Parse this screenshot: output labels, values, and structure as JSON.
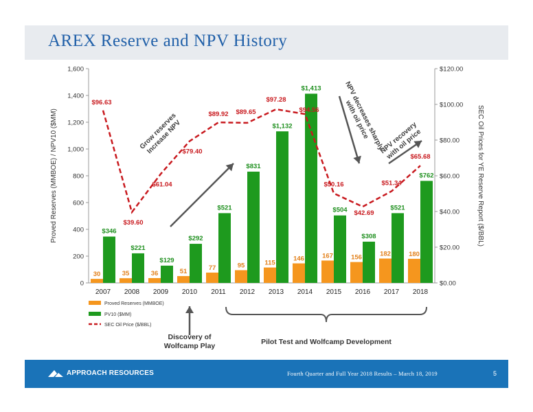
{
  "slide": {
    "title": "AREX Reserve and NPV History",
    "footer_text": "Fourth Quarter and Full Year 2018 Results – March 18, 2019",
    "page_number": "5",
    "logo_text": "APPROACH RESOURCES"
  },
  "chart_data": {
    "type": "bar",
    "categories": [
      "2007",
      "2008",
      "2009",
      "2010",
      "2011",
      "2012",
      "2013",
      "2014",
      "2015",
      "2016",
      "2017",
      "2018"
    ],
    "series": [
      {
        "name": "Proved Reserves (MMBOE)",
        "type": "bar",
        "axis": "left",
        "color": "#f5961e",
        "values": [
          30,
          35,
          36,
          51,
          77,
          95,
          115,
          146,
          167,
          156,
          182,
          180
        ],
        "labels": [
          "30",
          "35",
          "36",
          "51",
          "77",
          "95",
          "115",
          "146",
          "167",
          "156",
          "182",
          "180"
        ]
      },
      {
        "name": "PV10 ($MM)",
        "type": "bar",
        "axis": "left",
        "color": "#1e9a1e",
        "values": [
          346,
          221,
          129,
          292,
          521,
          831,
          1132,
          1413,
          504,
          308,
          521,
          762
        ],
        "labels": [
          "$346",
          "$221",
          "$129",
          "$292",
          "$521",
          "$831",
          "$1,132",
          "$1,413",
          "$504",
          "$308",
          "$521",
          "$762"
        ]
      },
      {
        "name": "SEC Oil Price ($/BBL)",
        "type": "line",
        "axis": "right",
        "color": "#c8191e",
        "values": [
          96.63,
          39.6,
          61.04,
          79.4,
          89.92,
          89.65,
          97.28,
          94.56,
          50.16,
          42.69,
          51.34,
          65.68
        ],
        "labels": [
          "$96.63",
          "$39.60",
          "$61.04",
          "$79.40",
          "$89.92",
          "$89.65",
          "$97.28",
          "$94.56",
          "$50.16",
          "$42.69",
          "$51.34",
          "$65.68"
        ]
      }
    ],
    "ylabel": "Proved Reserves (MMBOE) / NPV10 ($MM)",
    "y2label": "SEC Oil Prices for YE Reserve Report ($/BBL)",
    "ylim": [
      0,
      1600
    ],
    "y2lim": [
      0,
      120
    ],
    "yticks": [
      "0",
      "200",
      "400",
      "600",
      "800",
      "1,000",
      "1,200",
      "1,400",
      "1,600"
    ],
    "y2ticks": [
      "$0.00",
      "$20.00",
      "$40.00",
      "$60.00",
      "$80.00",
      "$100.00",
      "$120.00"
    ],
    "legend_position": "bottom-left",
    "grid": false,
    "annotations": {
      "grow": [
        "Grow reserves",
        "Increase NPV"
      ],
      "decrease": [
        "NPV decreases sharply",
        "with oil price"
      ],
      "recovery": [
        "NPV recovery",
        "with oil price"
      ],
      "discovery": [
        "Discovery of",
        "Wolfcamp Play"
      ],
      "pilot": "Pilot Test and Wolfcamp Development"
    }
  }
}
